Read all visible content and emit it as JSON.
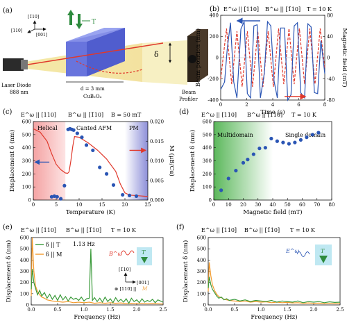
{
  "panels": {
    "a": {
      "label": "(a)",
      "laser": "Laser Diode",
      "laser_nm": "888 nm",
      "dir_110": "[110]",
      "dir_bar110": "[1̄10]",
      "dir_001": "[001]",
      "dim": "d = 3 mm",
      "crystal": "CuB₂O₄",
      "delta": "δ",
      "profiler1": "Beam",
      "profiler2": "Profiler",
      "T": "T"
    },
    "b": {
      "label": "(b)",
      "head": [
        "E^ω || [110]",
        "B^ω || [1̄10]",
        "T = 10 K"
      ]
    },
    "c": {
      "label": "(c)",
      "head": [
        "E^ω || [110]",
        "B^ω || [1̄10]",
        "B = 50 mT"
      ],
      "regions": [
        "Helical",
        "Canted AFM",
        "PM"
      ]
    },
    "d": {
      "label": "(d)",
      "head": [
        "E^ω || [110]",
        "B^ω || [1̄10]",
        "T = 10 K"
      ],
      "regions": [
        "Multidomain",
        "Single domain"
      ]
    },
    "e": {
      "label": "(e)",
      "head": [
        "E^ω || [110]",
        "B^ω || [1̄10]",
        "T = 10 K"
      ],
      "annotation": "1.13 Hz",
      "inset": {
        "B": "B^ω",
        "T": "T",
        "bar110": "[1̄10]",
        "dir001": "[001]",
        "dir110": "⊗ [110] ||",
        "M": "M"
      }
    },
    "f": {
      "label": "(f)",
      "head": [
        "E^ω || [110]",
        "B^ω || [1̄10]",
        "T = 10 K"
      ],
      "inset": {
        "E": "E^ω",
        "T": "T"
      }
    }
  },
  "colors": {
    "blue": "#2a55b4",
    "red": "#e0382b",
    "green": "#3a9a3a",
    "orange": "#f39a2c"
  },
  "chart_data": [
    {
      "id": "b",
      "type": "line",
      "xlabel": "Time (s)",
      "ylabel": "Beam position (nm)",
      "y2label": "Magnetic field (mT)",
      "xlim": [
        0,
        8
      ],
      "ylim": [
        -400,
        400
      ],
      "y2lim": [
        -80,
        80
      ],
      "xticks": [
        "0",
        "2",
        "4",
        "6",
        "8"
      ],
      "yticks": [
        "-400",
        "-200",
        "0",
        "200",
        "400"
      ],
      "y2ticks": [
        "-80",
        "-40",
        "0",
        "40",
        "80"
      ],
      "series": [
        {
          "color": "#2a55b4",
          "axis": "left",
          "x": [
            0,
            0.3,
            0.5,
            0.75,
            1.0,
            1.25,
            1.55,
            1.8,
            2.05,
            2.3,
            2.55,
            2.8,
            3.05,
            3.35,
            3.6,
            3.85,
            4.1,
            4.35,
            4.6,
            4.9,
            5.15,
            5.4,
            5.65,
            5.9,
            6.15,
            6.45,
            6.7,
            6.95,
            7.2,
            7.45,
            7.7,
            8.0
          ],
          "y": [
            -300,
            -230,
            80,
            330,
            -230,
            -380,
            270,
            340,
            -340,
            -380,
            300,
            310,
            -380,
            -150,
            340,
            300,
            -220,
            -380,
            280,
            280,
            -400,
            -350,
            300,
            330,
            -330,
            -380,
            320,
            290,
            -330,
            -340,
            160,
            -150
          ]
        },
        {
          "color": "#e0382b",
          "axis": "right",
          "dashed": true,
          "x": [
            0,
            0.45,
            0.85,
            1.25,
            1.65,
            2.05,
            2.45,
            2.85,
            3.25,
            3.65,
            4.05,
            4.45,
            4.85,
            5.25,
            5.65,
            6.05,
            6.45,
            6.85,
            7.25,
            7.65,
            8.0
          ],
          "y": [
            -40,
            55,
            -50,
            50,
            -55,
            50,
            -55,
            50,
            -55,
            50,
            -55,
            55,
            -50,
            55,
            -50,
            55,
            -50,
            55,
            -50,
            55,
            -20
          ]
        }
      ]
    },
    {
      "id": "c",
      "type": "scatter",
      "xlabel": "Temperature (K)",
      "ylabel": "Displacement δ (nm)",
      "y2label": "M (μB/Cu)",
      "xlim": [
        0,
        25
      ],
      "ylim": [
        0,
        600
      ],
      "y2lim": [
        0,
        0.022
      ],
      "xticks": [
        "0",
        "5",
        "10",
        "15",
        "20",
        "25"
      ],
      "yticks": [
        "0",
        "100",
        "200",
        "300",
        "400",
        "500",
        "600"
      ],
      "y2ticks": [
        "0.000",
        "0.005",
        "0.010",
        "0.015",
        "0.020"
      ],
      "series": [
        {
          "color": "#2a55b4",
          "marker": "circle",
          "x": [
            4.0,
            4.6,
            5.2,
            6.0,
            6.8,
            7.6,
            8.0,
            8.4,
            8.8,
            9.6,
            10.6,
            11.6,
            13.0,
            14.5,
            16.0,
            17.5,
            19.5,
            21.0,
            22.5
          ],
          "y": [
            25,
            30,
            25,
            10,
            110,
            540,
            545,
            540,
            535,
            510,
            480,
            420,
            380,
            250,
            200,
            115,
            40,
            35,
            30
          ]
        },
        {
          "color": "#e0382b",
          "axis": "right",
          "type": "line",
          "x": [
            0,
            1.5,
            3,
            4,
            5,
            6,
            7,
            7.5,
            7.8,
            8.2,
            8.6,
            9,
            10,
            12,
            14,
            16,
            18,
            19,
            20,
            21,
            22,
            23,
            24,
            25
          ],
          "y": [
            0.02,
            0.019,
            0.0165,
            0.013,
            0.01,
            0.0085,
            0.0076,
            0.0075,
            0.0079,
            0.011,
            0.015,
            0.0178,
            0.0176,
            0.016,
            0.014,
            0.0115,
            0.008,
            0.0045,
            0.002,
            0.0014,
            0.0013,
            0.0012,
            0.0011,
            0.001
          ]
        }
      ]
    },
    {
      "id": "d",
      "type": "scatter",
      "xlabel": "Magnetic field (mT)",
      "ylabel": "Displacement δ (nm)",
      "xlim": [
        0,
        80
      ],
      "ylim": [
        0,
        600
      ],
      "xticks": [
        "0",
        "10",
        "20",
        "30",
        "40",
        "50",
        "60",
        "70",
        "80"
      ],
      "yticks": [
        "0",
        "100",
        "200",
        "300",
        "400",
        "500",
        "600"
      ],
      "series": [
        {
          "color": "#2a55b4",
          "marker": "circle",
          "x": [
            5,
            10,
            15,
            20,
            23,
            27,
            31,
            35,
            39,
            43,
            47,
            51,
            55,
            59,
            63,
            67,
            71
          ],
          "y": [
            75,
            165,
            225,
            285,
            310,
            350,
            395,
            400,
            470,
            450,
            440,
            430,
            440,
            460,
            480,
            500,
            515
          ]
        }
      ]
    },
    {
      "id": "e",
      "type": "line",
      "xlabel": "Frequency (Hz)",
      "ylabel": "Displacement δ (nm)",
      "xlim": [
        0,
        2.5
      ],
      "ylim": [
        0,
        600
      ],
      "xticks": [
        "0.0",
        "0.5",
        "1.0",
        "1.5",
        "2.0",
        "2.5"
      ],
      "yticks": [
        "0",
        "100",
        "200",
        "300",
        "400",
        "500",
        "600"
      ],
      "series": [
        {
          "name": "δ || T",
          "color": "#3a9a3a",
          "x": [
            0,
            0.02,
            0.05,
            0.08,
            0.12,
            0.16,
            0.2,
            0.25,
            0.3,
            0.35,
            0.4,
            0.45,
            0.5,
            0.55,
            0.6,
            0.65,
            0.7,
            0.75,
            0.8,
            0.85,
            0.9,
            0.95,
            1.0,
            1.05,
            1.1,
            1.13,
            1.16,
            1.2,
            1.25,
            1.3,
            1.35,
            1.4,
            1.45,
            1.5,
            1.55,
            1.6,
            1.65,
            1.7,
            1.75,
            1.8,
            1.85,
            1.9,
            1.95,
            2.0,
            2.05,
            2.1,
            2.15,
            2.2,
            2.25,
            2.3,
            2.35,
            2.4,
            2.45,
            2.5
          ],
          "y": [
            140,
            320,
            200,
            150,
            90,
            130,
            80,
            110,
            60,
            95,
            50,
            85,
            40,
            90,
            45,
            75,
            35,
            70,
            50,
            60,
            40,
            70,
            35,
            55,
            60,
            500,
            40,
            65,
            30,
            60,
            25,
            70,
            30,
            55,
            20,
            65,
            30,
            50,
            25,
            55,
            15,
            60,
            30,
            45,
            20,
            55,
            25,
            40,
            30,
            50,
            20,
            45,
            35,
            25
          ]
        },
        {
          "name": "δ || M",
          "color": "#f39a2c",
          "x": [
            0,
            0.02,
            0.05,
            0.08,
            0.12,
            0.16,
            0.2,
            0.25,
            0.3,
            0.35,
            0.4,
            0.5,
            0.6,
            0.7,
            0.8,
            0.9,
            1.0,
            1.1,
            1.2,
            1.3,
            1.4,
            1.5,
            1.6,
            1.7,
            1.8,
            1.9,
            2.0,
            2.1,
            2.2,
            2.3,
            2.4,
            2.5
          ],
          "y": [
            80,
            600,
            300,
            170,
            120,
            90,
            70,
            60,
            45,
            40,
            35,
            30,
            25,
            30,
            20,
            25,
            20,
            25,
            15,
            20,
            15,
            20,
            15,
            18,
            12,
            15,
            10,
            14,
            10,
            12,
            10,
            8
          ]
        }
      ]
    },
    {
      "id": "f",
      "type": "line",
      "xlabel": "Frequency (Hz)",
      "ylabel": "Displacement δ (nm)",
      "xlim": [
        0,
        2.5
      ],
      "ylim": [
        0,
        600
      ],
      "xticks": [
        "0.0",
        "0.5",
        "1.0",
        "1.5",
        "2.0",
        "2.5"
      ],
      "yticks": [
        "0",
        "100",
        "200",
        "300",
        "400",
        "500",
        "600"
      ],
      "series": [
        {
          "color": "#3a9a3a",
          "x": [
            0,
            0.02,
            0.05,
            0.08,
            0.12,
            0.16,
            0.2,
            0.25,
            0.3,
            0.35,
            0.4,
            0.5,
            0.6,
            0.7,
            0.8,
            0.9,
            1.0,
            1.1,
            1.2,
            1.3,
            1.4,
            1.5,
            1.6,
            1.7,
            1.8,
            1.9,
            2.0,
            2.1,
            2.2,
            2.3,
            2.4,
            2.5
          ],
          "y": [
            150,
            250,
            180,
            140,
            110,
            80,
            60,
            70,
            45,
            55,
            40,
            50,
            35,
            45,
            30,
            40,
            35,
            30,
            40,
            25,
            35,
            30,
            25,
            35,
            20,
            30,
            25,
            30,
            20,
            28,
            22,
            25
          ]
        },
        {
          "color": "#f39a2c",
          "x": [
            0,
            0.02,
            0.05,
            0.08,
            0.12,
            0.16,
            0.2,
            0.25,
            0.3,
            0.35,
            0.4,
            0.5,
            0.6,
            0.7,
            0.8,
            0.9,
            1.0,
            1.1,
            1.2,
            1.3,
            1.4,
            1.5,
            1.6,
            1.7,
            1.8,
            1.9,
            2.0,
            2.1,
            2.2,
            2.3,
            2.4,
            2.5
          ],
          "y": [
            120,
            380,
            260,
            180,
            130,
            95,
            75,
            65,
            50,
            45,
            40,
            35,
            30,
            35,
            25,
            30,
            25,
            28,
            20,
            25,
            20,
            22,
            18,
            20,
            15,
            18,
            14,
            16,
            12,
            14,
            12,
            10
          ]
        }
      ]
    }
  ]
}
